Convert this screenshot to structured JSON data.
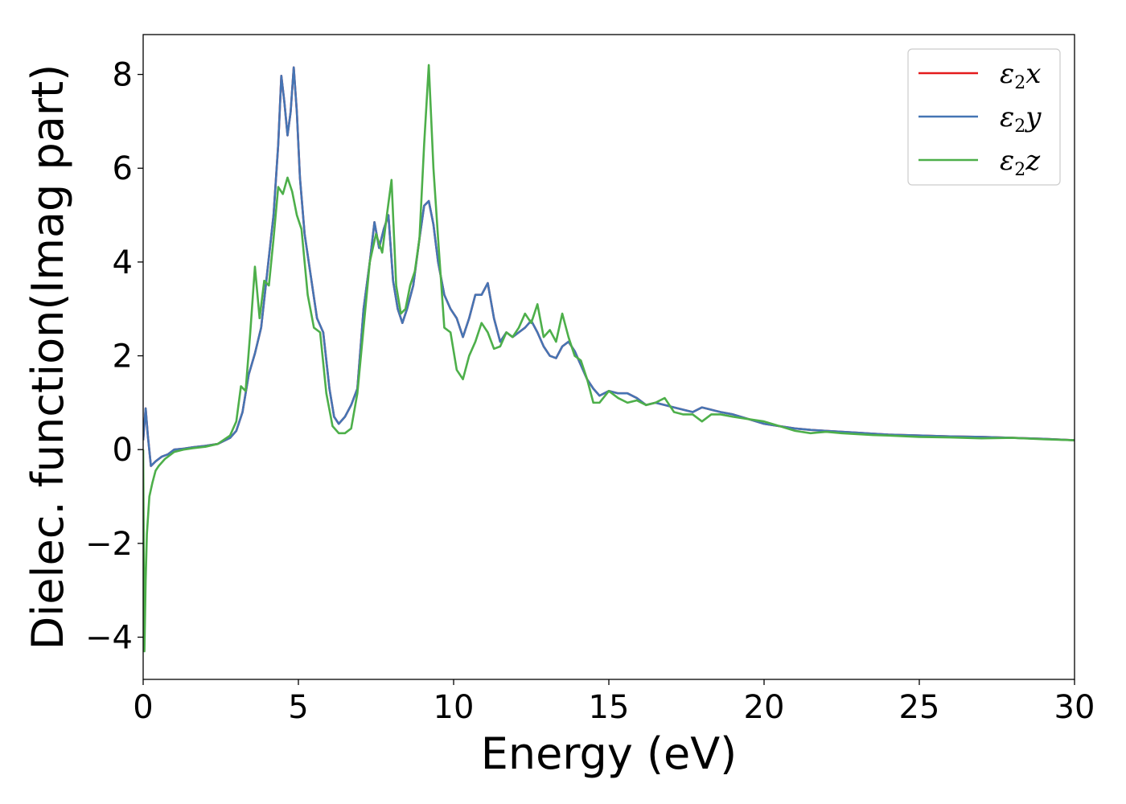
{
  "chart_data": {
    "type": "line",
    "title": "",
    "xlabel": "Energy (eV)",
    "ylabel": "Dielec. function(Imag part)",
    "xlim": [
      0,
      30
    ],
    "ylim": [
      -4.9,
      8.85
    ],
    "xticks": [
      0,
      5,
      10,
      15,
      20,
      25,
      30
    ],
    "xtick_labels": [
      "0",
      "5",
      "10",
      "15",
      "20",
      "25",
      "30"
    ],
    "yticks": [
      -4,
      -2,
      0,
      2,
      4,
      6,
      8
    ],
    "ytick_labels": [
      "−4",
      "−2",
      "0",
      "2",
      "4",
      "6",
      "8"
    ],
    "grid": false,
    "legend": "top-right",
    "series": [
      {
        "name": "ε₂x",
        "base": "ε",
        "sub": "2",
        "var": "x",
        "color": "#e41a1c",
        "x": [
          0,
          0.08,
          0.15,
          0.25,
          0.4,
          0.6,
          0.8,
          1.0,
          1.3,
          1.6,
          2.0,
          2.4,
          2.8,
          3.0,
          3.2,
          3.4,
          3.6,
          3.8,
          4.0,
          4.2,
          4.35,
          4.45,
          4.55,
          4.65,
          4.75,
          4.85,
          4.95,
          5.05,
          5.2,
          5.4,
          5.6,
          5.8,
          6.0,
          6.15,
          6.3,
          6.5,
          6.7,
          6.9,
          7.1,
          7.3,
          7.45,
          7.6,
          7.75,
          7.9,
          8.05,
          8.2,
          8.35,
          8.5,
          8.7,
          8.9,
          9.05,
          9.2,
          9.35,
          9.5,
          9.7,
          9.9,
          10.1,
          10.3,
          10.5,
          10.7,
          10.9,
          11.1,
          11.3,
          11.5,
          11.7,
          11.9,
          12.1,
          12.3,
          12.5,
          12.7,
          12.9,
          13.1,
          13.3,
          13.5,
          13.7,
          13.9,
          14.1,
          14.3,
          14.5,
          14.7,
          15.0,
          15.3,
          15.6,
          15.9,
          16.2,
          16.5,
          16.8,
          17.1,
          17.4,
          17.7,
          18.0,
          18.3,
          18.6,
          19.0,
          19.5,
          20.0,
          20.5,
          21.0,
          21.5,
          22.0,
          22.5,
          23.0,
          23.5,
          24.0,
          25.0,
          26.0,
          27.0,
          28.0,
          29.0,
          30.0
        ],
        "y": [
          0.2,
          0.88,
          0.3,
          -0.35,
          -0.25,
          -0.15,
          -0.1,
          0.0,
          0.02,
          0.05,
          0.08,
          0.12,
          0.25,
          0.4,
          0.8,
          1.6,
          2.05,
          2.6,
          3.8,
          5.0,
          6.5,
          7.97,
          7.4,
          6.7,
          7.2,
          8.15,
          7.2,
          5.8,
          4.6,
          3.7,
          2.8,
          2.5,
          1.3,
          0.7,
          0.55,
          0.7,
          0.95,
          1.3,
          3.0,
          4.0,
          4.85,
          4.3,
          4.7,
          5.0,
          3.6,
          3.0,
          2.7,
          3.0,
          3.5,
          4.5,
          5.2,
          5.3,
          4.8,
          4.0,
          3.3,
          3.0,
          2.8,
          2.4,
          2.8,
          3.3,
          3.3,
          3.55,
          2.8,
          2.3,
          2.5,
          2.4,
          2.5,
          2.6,
          2.75,
          2.5,
          2.2,
          2.0,
          1.95,
          2.2,
          2.3,
          2.1,
          1.8,
          1.5,
          1.3,
          1.15,
          1.25,
          1.2,
          1.2,
          1.1,
          0.95,
          1.0,
          0.95,
          0.9,
          0.85,
          0.8,
          0.9,
          0.85,
          0.8,
          0.75,
          0.65,
          0.55,
          0.5,
          0.45,
          0.42,
          0.4,
          0.38,
          0.36,
          0.34,
          0.32,
          0.3,
          0.28,
          0.27,
          0.25,
          0.23,
          0.2
        ]
      },
      {
        "name": "ε₂y",
        "base": "ε",
        "sub": "2",
        "var": "y",
        "color": "#4575b4",
        "x": [
          0,
          0.08,
          0.15,
          0.25,
          0.4,
          0.6,
          0.8,
          1.0,
          1.3,
          1.6,
          2.0,
          2.4,
          2.8,
          3.0,
          3.2,
          3.4,
          3.6,
          3.8,
          4.0,
          4.2,
          4.35,
          4.45,
          4.55,
          4.65,
          4.75,
          4.85,
          4.95,
          5.05,
          5.2,
          5.4,
          5.6,
          5.8,
          6.0,
          6.15,
          6.3,
          6.5,
          6.7,
          6.9,
          7.1,
          7.3,
          7.45,
          7.6,
          7.75,
          7.9,
          8.05,
          8.2,
          8.35,
          8.5,
          8.7,
          8.9,
          9.05,
          9.2,
          9.35,
          9.5,
          9.7,
          9.9,
          10.1,
          10.3,
          10.5,
          10.7,
          10.9,
          11.1,
          11.3,
          11.5,
          11.7,
          11.9,
          12.1,
          12.3,
          12.5,
          12.7,
          12.9,
          13.1,
          13.3,
          13.5,
          13.7,
          13.9,
          14.1,
          14.3,
          14.5,
          14.7,
          15.0,
          15.3,
          15.6,
          15.9,
          16.2,
          16.5,
          16.8,
          17.1,
          17.4,
          17.7,
          18.0,
          18.3,
          18.6,
          19.0,
          19.5,
          20.0,
          20.5,
          21.0,
          21.5,
          22.0,
          22.5,
          23.0,
          23.5,
          24.0,
          25.0,
          26.0,
          27.0,
          28.0,
          29.0,
          30.0
        ],
        "y": [
          0.2,
          0.88,
          0.3,
          -0.35,
          -0.25,
          -0.15,
          -0.1,
          0.0,
          0.02,
          0.05,
          0.08,
          0.12,
          0.25,
          0.4,
          0.8,
          1.6,
          2.05,
          2.6,
          3.8,
          5.0,
          6.5,
          7.97,
          7.4,
          6.7,
          7.2,
          8.15,
          7.2,
          5.8,
          4.6,
          3.7,
          2.8,
          2.5,
          1.3,
          0.7,
          0.55,
          0.7,
          0.95,
          1.3,
          3.0,
          4.0,
          4.85,
          4.3,
          4.7,
          5.0,
          3.6,
          3.0,
          2.7,
          3.0,
          3.5,
          4.5,
          5.2,
          5.3,
          4.8,
          4.0,
          3.3,
          3.0,
          2.8,
          2.4,
          2.8,
          3.3,
          3.3,
          3.55,
          2.8,
          2.3,
          2.5,
          2.4,
          2.5,
          2.6,
          2.75,
          2.5,
          2.2,
          2.0,
          1.95,
          2.2,
          2.3,
          2.1,
          1.8,
          1.5,
          1.3,
          1.15,
          1.25,
          1.2,
          1.2,
          1.1,
          0.95,
          1.0,
          0.95,
          0.9,
          0.85,
          0.8,
          0.9,
          0.85,
          0.8,
          0.75,
          0.65,
          0.55,
          0.5,
          0.45,
          0.42,
          0.4,
          0.38,
          0.36,
          0.34,
          0.32,
          0.3,
          0.28,
          0.27,
          0.25,
          0.23,
          0.2
        ]
      },
      {
        "name": "ε₂z",
        "base": "ε",
        "sub": "2",
        "var": "z",
        "color": "#4daf4a",
        "x": [
          0,
          0.04,
          0.08,
          0.12,
          0.2,
          0.3,
          0.4,
          0.5,
          0.7,
          1.0,
          1.3,
          1.6,
          2.0,
          2.4,
          2.8,
          3.0,
          3.15,
          3.3,
          3.45,
          3.6,
          3.75,
          3.9,
          4.05,
          4.2,
          4.35,
          4.5,
          4.65,
          4.8,
          4.95,
          5.1,
          5.3,
          5.5,
          5.7,
          5.9,
          6.1,
          6.3,
          6.5,
          6.7,
          6.9,
          7.1,
          7.3,
          7.5,
          7.7,
          7.85,
          8.0,
          8.15,
          8.3,
          8.45,
          8.6,
          8.75,
          8.9,
          9.05,
          9.2,
          9.35,
          9.5,
          9.7,
          9.9,
          10.1,
          10.3,
          10.5,
          10.7,
          10.9,
          11.1,
          11.3,
          11.5,
          11.7,
          11.9,
          12.1,
          12.3,
          12.5,
          12.7,
          12.9,
          13.1,
          13.3,
          13.5,
          13.7,
          13.9,
          14.1,
          14.3,
          14.5,
          14.7,
          15.0,
          15.3,
          15.6,
          15.9,
          16.2,
          16.5,
          16.8,
          17.1,
          17.4,
          17.7,
          18.0,
          18.3,
          18.6,
          19.0,
          19.5,
          20.0,
          20.5,
          21.0,
          21.5,
          22.0,
          22.5,
          23.0,
          23.5,
          24.0,
          25.0,
          26.0,
          27.0,
          28.0,
          29.0,
          30.0
        ],
        "y": [
          0.0,
          -4.3,
          -2.8,
          -1.8,
          -1.0,
          -0.7,
          -0.45,
          -0.35,
          -0.2,
          -0.05,
          0.0,
          0.03,
          0.06,
          0.12,
          0.3,
          0.6,
          1.35,
          1.25,
          2.5,
          3.9,
          2.8,
          3.6,
          3.5,
          4.5,
          5.6,
          5.45,
          5.8,
          5.5,
          5.0,
          4.7,
          3.3,
          2.6,
          2.5,
          1.2,
          0.5,
          0.35,
          0.35,
          0.45,
          1.2,
          2.6,
          4.0,
          4.6,
          4.2,
          5.0,
          5.75,
          3.5,
          2.9,
          3.0,
          3.5,
          3.8,
          4.5,
          6.5,
          8.2,
          6.0,
          4.5,
          2.6,
          2.5,
          1.7,
          1.5,
          2.0,
          2.3,
          2.7,
          2.5,
          2.15,
          2.2,
          2.5,
          2.4,
          2.6,
          2.9,
          2.7,
          3.1,
          2.4,
          2.55,
          2.3,
          2.9,
          2.4,
          2.0,
          1.9,
          1.5,
          1.0,
          1.0,
          1.25,
          1.1,
          1.0,
          1.05,
          0.95,
          1.0,
          1.1,
          0.8,
          0.75,
          0.75,
          0.6,
          0.75,
          0.75,
          0.7,
          0.65,
          0.6,
          0.5,
          0.4,
          0.35,
          0.38,
          0.35,
          0.33,
          0.31,
          0.3,
          0.27,
          0.26,
          0.24,
          0.25,
          0.22,
          0.2
        ]
      }
    ]
  }
}
